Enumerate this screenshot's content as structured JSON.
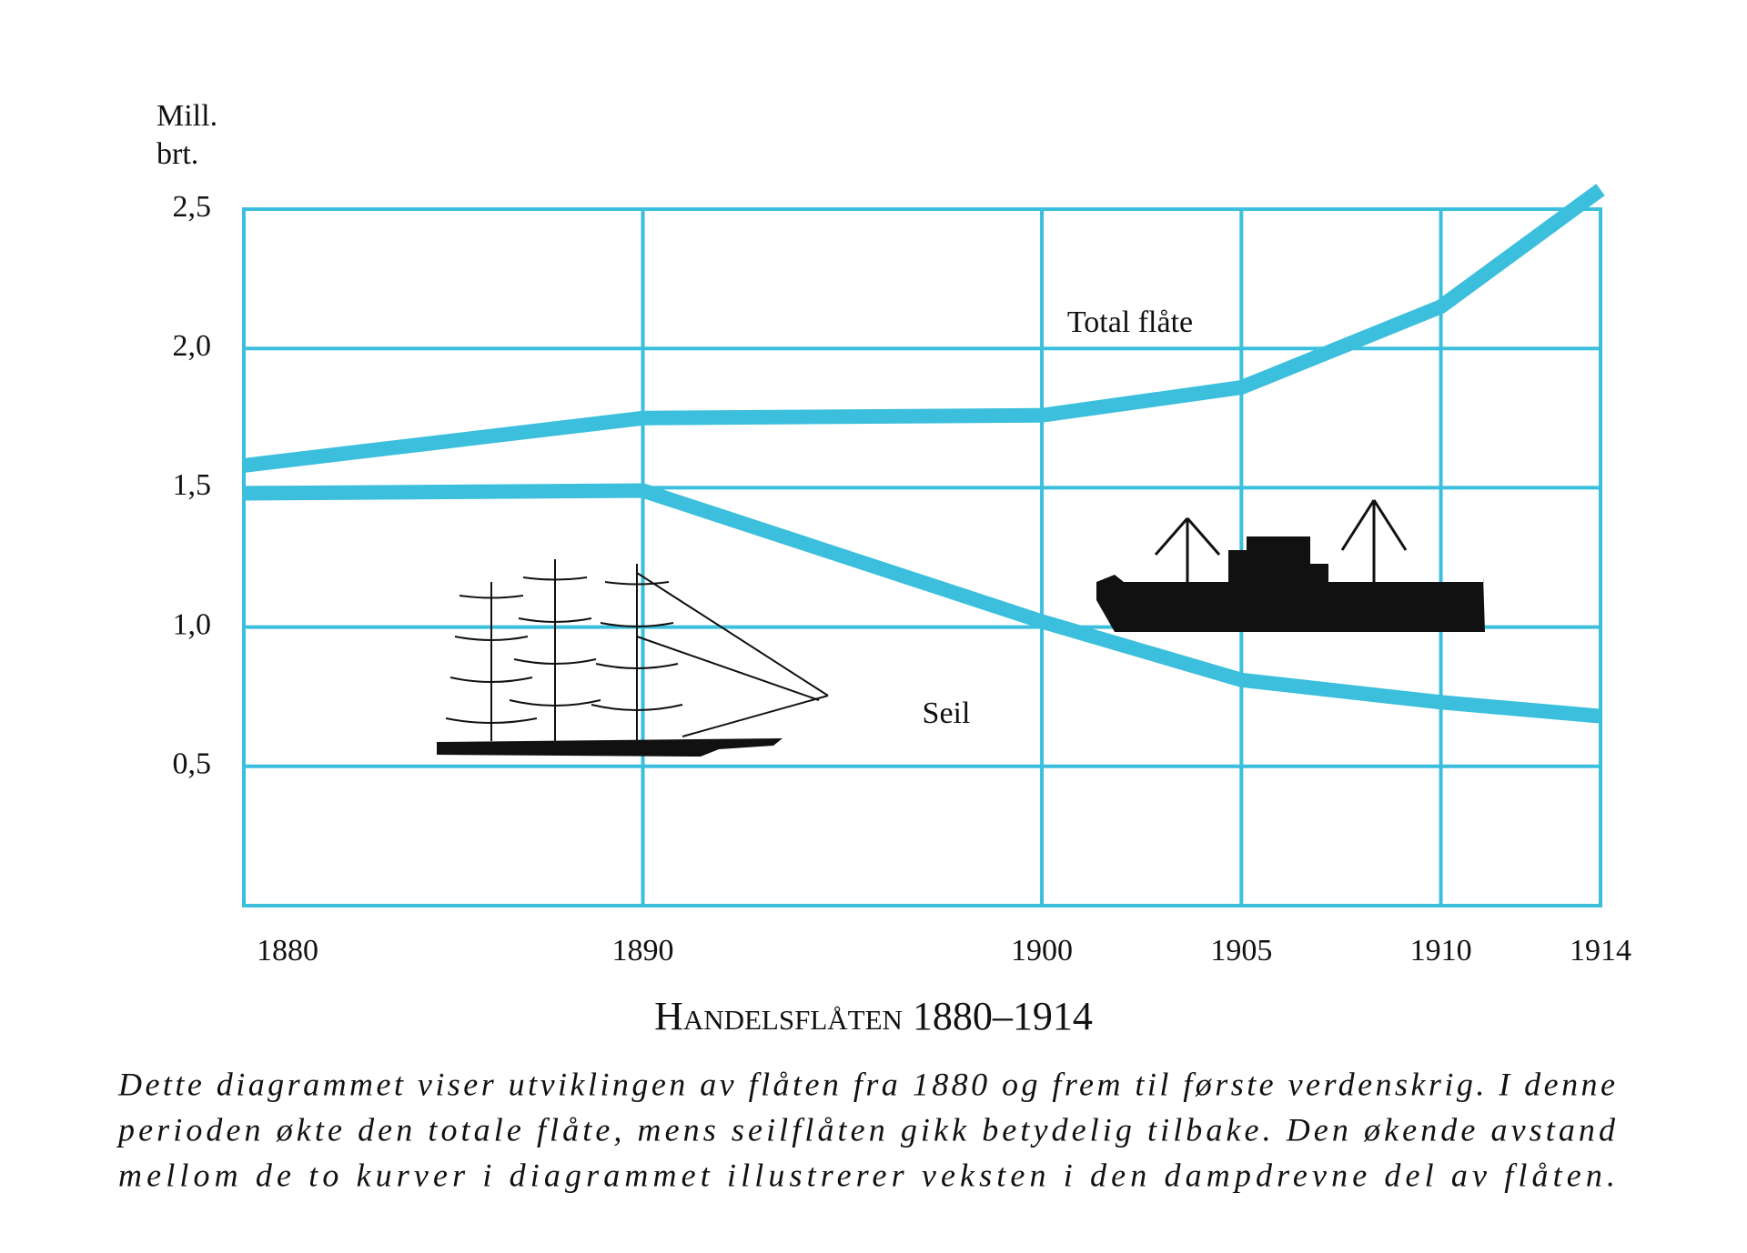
{
  "chart_data": {
    "type": "line",
    "y_axis_label": [
      "Mill.",
      "brt."
    ],
    "title": "Handelsflåten 1880–1914",
    "caption": [
      "Dette diagrammet viser utviklingen av flåten fra 1880 og frem til første verdenskrig. I denne",
      "perioden økte den totale flåte, mens seilflåten gikk betydelig tilbake. Den økende avstand",
      "mellom de to kurver i diagrammet illustrerer veksten i den dampdrevne del av flåten."
    ],
    "x": [
      1880,
      1890,
      1900,
      1905,
      1910,
      1914
    ],
    "xlim": [
      1880,
      1914
    ],
    "xticks": [
      1880,
      1890,
      1900,
      1905,
      1910,
      1914
    ],
    "ylim": [
      0,
      2.5
    ],
    "yticks": [
      {
        "value": 0.5,
        "label": "0,5"
      },
      {
        "value": 1.0,
        "label": "1,0"
      },
      {
        "value": 1.5,
        "label": "1,5"
      },
      {
        "value": 2.0,
        "label": "2,0"
      },
      {
        "value": 2.5,
        "label": "2,5"
      }
    ],
    "grid": true,
    "color": "#3bbfdc",
    "series": [
      {
        "name": "Total flåte",
        "color": "#3bbfdc",
        "values": [
          1.58,
          1.75,
          1.76,
          1.86,
          2.15,
          2.57
        ]
      },
      {
        "name": "Seil",
        "color": "#3bbfdc",
        "values": [
          1.48,
          1.49,
          1.02,
          0.81,
          0.73,
          0.68
        ]
      }
    ]
  }
}
